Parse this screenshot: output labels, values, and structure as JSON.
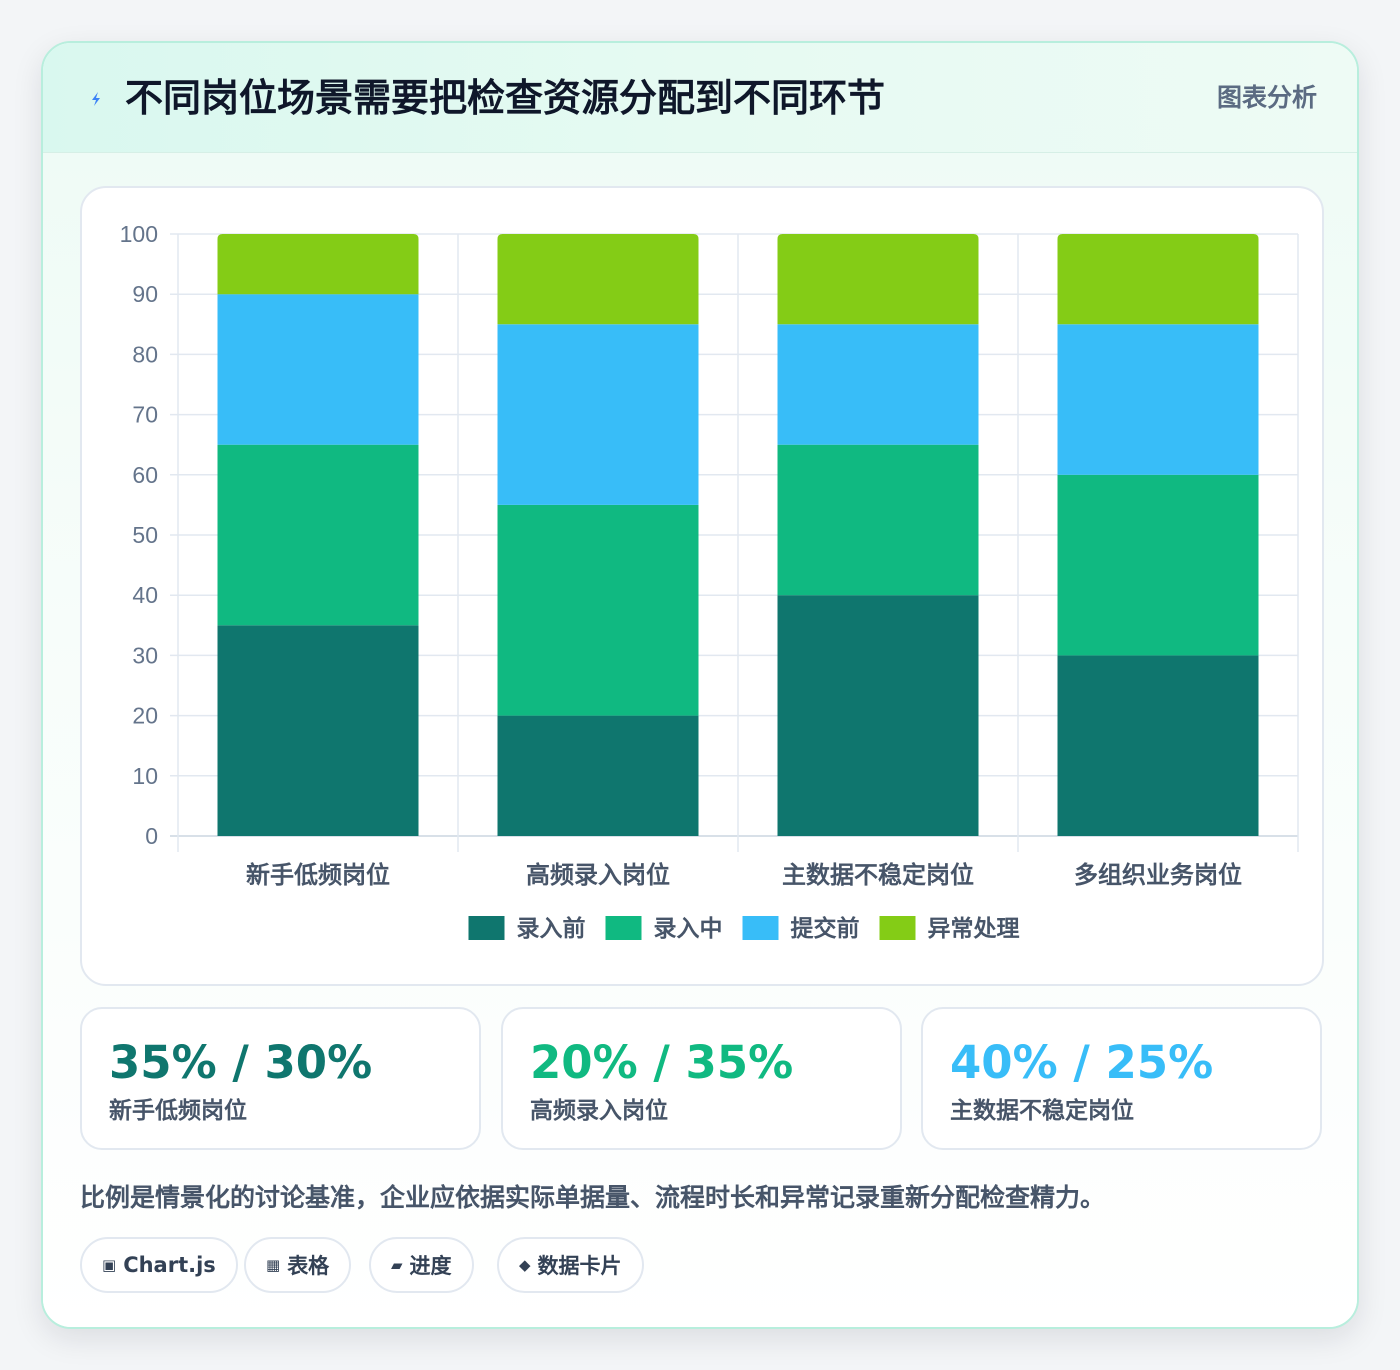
{
  "header": {
    "title": "不同岗位场景需要把检查资源分配到不同环节",
    "tag": "图表分析"
  },
  "colors": {
    "series": [
      "#0f766e",
      "#10b981",
      "#38bdf8",
      "#84cc16"
    ],
    "stat_values": [
      "#0f766e",
      "#10b981",
      "#38bdf8"
    ]
  },
  "chart_data": {
    "type": "bar",
    "stacked": true,
    "categories": [
      "新手低频岗位",
      "高频录入岗位",
      "主数据不稳定岗位",
      "多组织业务岗位"
    ],
    "series": [
      {
        "name": "录入前",
        "values": [
          35,
          20,
          40,
          30
        ]
      },
      {
        "name": "录入中",
        "values": [
          30,
          35,
          25,
          30
        ]
      },
      {
        "name": "提交前",
        "values": [
          25,
          30,
          20,
          25
        ]
      },
      {
        "name": "异常处理",
        "values": [
          10,
          15,
          15,
          15
        ]
      }
    ],
    "ylim": [
      0,
      100
    ],
    "yticks": [
      0,
      10,
      20,
      30,
      40,
      50,
      60,
      70,
      80,
      90,
      100
    ],
    "grid": true,
    "legend": "bottom"
  },
  "stats": [
    {
      "value": "35% / 30%",
      "label": "新手低频岗位"
    },
    {
      "value": "20% / 35%",
      "label": "高频录入岗位"
    },
    {
      "value": "40% / 25%",
      "label": "主数据不稳定岗位"
    }
  ],
  "note": "比例是情景化的讨论基准，企业应依据实际单据量、流程时长和异常记录重新分配检查精力。",
  "chips": [
    {
      "icon": "▣",
      "icon_name": "chart-icon",
      "label": "Chart.js"
    },
    {
      "icon": "▦",
      "icon_name": "table-icon",
      "label": "表格"
    },
    {
      "icon": "▰",
      "icon_name": "progress-icon",
      "label": "进度"
    },
    {
      "icon": "◆",
      "icon_name": "diamond-icon",
      "label": "数据卡片"
    }
  ]
}
